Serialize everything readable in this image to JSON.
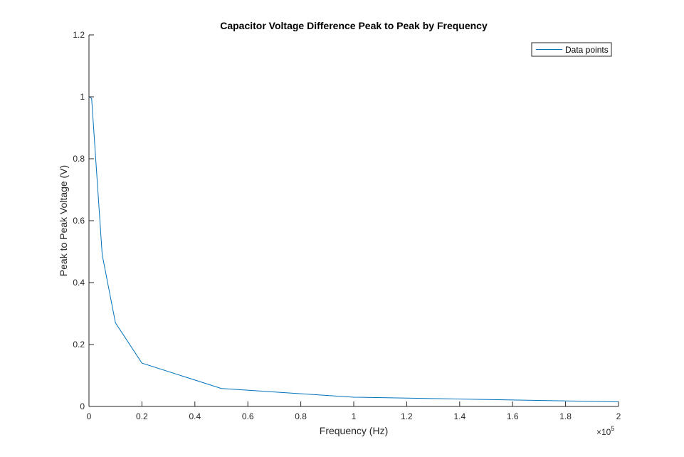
{
  "chart_data": {
    "type": "line",
    "title": "Capacitor Voltage Difference Peak to Peak by Frequency",
    "xlabel": "Frequency (Hz)",
    "ylabel": "Peak to Peak Voltage (V)",
    "x_exponent_base": "×10",
    "x_exponent_power": "5",
    "x_tick_labels": [
      "0",
      "0.2",
      "0.4",
      "0.6",
      "0.8",
      "1",
      "1.2",
      "1.4",
      "1.6",
      "1.8",
      "2"
    ],
    "x_tick_values": [
      0,
      20000,
      40000,
      60000,
      80000,
      100000,
      120000,
      140000,
      160000,
      180000,
      200000
    ],
    "y_tick_labels": [
      "0",
      "0.2",
      "0.4",
      "0.6",
      "0.8",
      "1",
      "1.2"
    ],
    "y_tick_values": [
      0,
      0.2,
      0.4,
      0.6,
      0.8,
      1.0,
      1.2
    ],
    "xlim": [
      0,
      200000
    ],
    "ylim": [
      0,
      1.2
    ],
    "grid": false,
    "legend_position": "top-right",
    "series": [
      {
        "name": "Data points",
        "color": "#0072BD",
        "x": [
          100,
          1000,
          5000,
          10000,
          20000,
          50000,
          100000,
          200000
        ],
        "y": [
          1.0,
          0.995,
          0.49,
          0.27,
          0.14,
          0.058,
          0.03,
          0.015
        ]
      }
    ]
  }
}
